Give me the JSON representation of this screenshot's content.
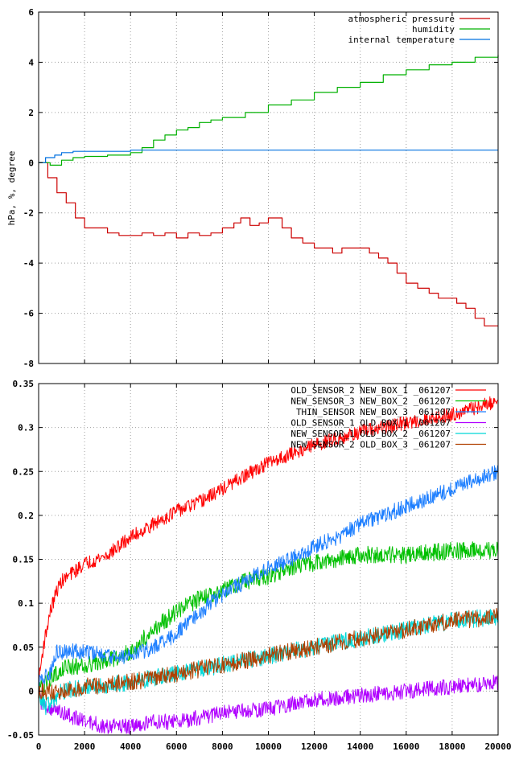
{
  "chart_data": [
    {
      "type": "line",
      "title": "",
      "xlabel": "",
      "ylabel": "hPa, %, degree",
      "xlim": [
        0,
        20000
      ],
      "ylim": [
        -8,
        6
      ],
      "grid": true,
      "legend_position": "top-right",
      "x_ticks": [
        0,
        2000,
        4000,
        6000,
        8000,
        10000,
        12000,
        14000,
        16000,
        18000,
        20000
      ],
      "y_ticks": [
        -8,
        -6,
        -4,
        -2,
        0,
        2,
        4,
        6
      ],
      "y_tick_labels": [
        "-8",
        "-6",
        "-4",
        "-2",
        "0",
        "2",
        "4",
        "6"
      ],
      "x_tick_labels_shown": false,
      "series": [
        {
          "name": "atmospheric pressure",
          "color": "#cc0000",
          "points": [
            [
              0,
              0
            ],
            [
              400,
              -0.6
            ],
            [
              800,
              -1.2
            ],
            [
              1200,
              -1.6
            ],
            [
              1600,
              -2.2
            ],
            [
              2000,
              -2.6
            ],
            [
              2500,
              -2.6
            ],
            [
              3000,
              -2.8
            ],
            [
              3500,
              -2.9
            ],
            [
              4000,
              -2.9
            ],
            [
              4500,
              -2.8
            ],
            [
              5000,
              -2.9
            ],
            [
              5500,
              -2.8
            ],
            [
              6000,
              -3.0
            ],
            [
              6500,
              -2.8
            ],
            [
              7000,
              -2.9
            ],
            [
              7500,
              -2.8
            ],
            [
              8000,
              -2.6
            ],
            [
              8500,
              -2.4
            ],
            [
              8800,
              -2.2
            ],
            [
              9200,
              -2.5
            ],
            [
              9600,
              -2.4
            ],
            [
              10000,
              -2.2
            ],
            [
              10300,
              -2.2
            ],
            [
              10600,
              -2.6
            ],
            [
              11000,
              -3.0
            ],
            [
              11500,
              -3.2
            ],
            [
              12000,
              -3.4
            ],
            [
              12500,
              -3.4
            ],
            [
              12800,
              -3.6
            ],
            [
              13200,
              -3.4
            ],
            [
              13600,
              -3.4
            ],
            [
              14000,
              -3.4
            ],
            [
              14400,
              -3.6
            ],
            [
              14800,
              -3.8
            ],
            [
              15200,
              -4.0
            ],
            [
              15600,
              -4.4
            ],
            [
              16000,
              -4.8
            ],
            [
              16500,
              -5.0
            ],
            [
              17000,
              -5.2
            ],
            [
              17400,
              -5.4
            ],
            [
              17800,
              -5.4
            ],
            [
              18200,
              -5.6
            ],
            [
              18600,
              -5.8
            ],
            [
              19000,
              -6.2
            ],
            [
              19400,
              -6.5
            ],
            [
              20000,
              -6.5
            ]
          ]
        },
        {
          "name": "humidity",
          "color": "#00b000",
          "points": [
            [
              0,
              0
            ],
            [
              500,
              -0.1
            ],
            [
              1000,
              0.1
            ],
            [
              1500,
              0.2
            ],
            [
              2000,
              0.25
            ],
            [
              3000,
              0.3
            ],
            [
              4000,
              0.4
            ],
            [
              4500,
              0.6
            ],
            [
              5000,
              0.9
            ],
            [
              5500,
              1.1
            ],
            [
              6000,
              1.3
            ],
            [
              6500,
              1.4
            ],
            [
              7000,
              1.6
            ],
            [
              7500,
              1.7
            ],
            [
              8000,
              1.8
            ],
            [
              9000,
              2.0
            ],
            [
              10000,
              2.3
            ],
            [
              11000,
              2.5
            ],
            [
              12000,
              2.8
            ],
            [
              13000,
              3.0
            ],
            [
              14000,
              3.2
            ],
            [
              15000,
              3.5
            ],
            [
              16000,
              3.7
            ],
            [
              17000,
              3.9
            ],
            [
              18000,
              4.0
            ],
            [
              19000,
              4.2
            ],
            [
              20000,
              4.3
            ]
          ]
        },
        {
          "name": "internal temperature",
          "color": "#0070e0",
          "points": [
            [
              0,
              0
            ],
            [
              300,
              0.2
            ],
            [
              700,
              0.3
            ],
            [
              1000,
              0.4
            ],
            [
              1500,
              0.45
            ],
            [
              3000,
              0.45
            ],
            [
              4000,
              0.5
            ],
            [
              8000,
              0.5
            ],
            [
              20000,
              0.5
            ]
          ]
        }
      ]
    },
    {
      "type": "line",
      "title": "",
      "xlabel": "",
      "ylabel": "",
      "xlim": [
        0,
        20000
      ],
      "ylim": [
        -0.05,
        0.35
      ],
      "grid": true,
      "legend_position": "top-right",
      "x_ticks": [
        0,
        2000,
        4000,
        6000,
        8000,
        10000,
        12000,
        14000,
        16000,
        18000,
        20000
      ],
      "x_tick_labels": [
        "0",
        "2000",
        "4000",
        "6000",
        "8000",
        "10000",
        "12000",
        "14000",
        "16000",
        "18000",
        "20000"
      ],
      "y_ticks": [
        -0.05,
        0,
        0.05,
        0.1,
        0.15,
        0.2,
        0.25,
        0.3,
        0.35
      ],
      "y_tick_labels": [
        "-0.05",
        "0",
        "0.05",
        "0.1",
        "0.15",
        "0.2",
        "0.25",
        "0.3",
        "0.35"
      ],
      "series": [
        {
          "name": "OLD_SENSOR_2 NEW_BOX_1 _061207",
          "color": "#ff0000",
          "noise": 0.008,
          "points": [
            [
              0,
              0.01
            ],
            [
              200,
              0.05
            ],
            [
              500,
              0.09
            ],
            [
              800,
              0.115
            ],
            [
              1000,
              0.125
            ],
            [
              1500,
              0.135
            ],
            [
              2000,
              0.145
            ],
            [
              3000,
              0.155
            ],
            [
              4000,
              0.175
            ],
            [
              5000,
              0.19
            ],
            [
              6000,
              0.205
            ],
            [
              7000,
              0.215
            ],
            [
              8000,
              0.23
            ],
            [
              9000,
              0.245
            ],
            [
              10000,
              0.26
            ],
            [
              12000,
              0.28
            ],
            [
              14000,
              0.295
            ],
            [
              16000,
              0.305
            ],
            [
              18000,
              0.315
            ],
            [
              20000,
              0.33
            ]
          ]
        },
        {
          "name": "NEW_SENSOR_3 NEW_BOX_2 _061207",
          "color": "#00c000",
          "noise": 0.01,
          "points": [
            [
              0,
              0
            ],
            [
              500,
              0.015
            ],
            [
              1000,
              0.025
            ],
            [
              2000,
              0.03
            ],
            [
              3000,
              0.035
            ],
            [
              4000,
              0.045
            ],
            [
              5000,
              0.07
            ],
            [
              6000,
              0.09
            ],
            [
              7000,
              0.105
            ],
            [
              8000,
              0.115
            ],
            [
              9000,
              0.125
            ],
            [
              10000,
              0.13
            ],
            [
              11000,
              0.14
            ],
            [
              12000,
              0.145
            ],
            [
              13000,
              0.15
            ],
            [
              14000,
              0.155
            ],
            [
              16000,
              0.155
            ],
            [
              18000,
              0.16
            ],
            [
              20000,
              0.16
            ]
          ]
        },
        {
          "name": "THIN_SENSOR NEW_BOX_3 _061207",
          "color": "#1e7fff",
          "noise": 0.009,
          "points": [
            [
              0,
              0.01
            ],
            [
              500,
              0.02
            ],
            [
              800,
              0.045
            ],
            [
              1500,
              0.045
            ],
            [
              2000,
              0.045
            ],
            [
              3000,
              0.04
            ],
            [
              4000,
              0.04
            ],
            [
              5000,
              0.05
            ],
            [
              6000,
              0.065
            ],
            [
              7000,
              0.09
            ],
            [
              8000,
              0.11
            ],
            [
              9000,
              0.125
            ],
            [
              10000,
              0.14
            ],
            [
              11000,
              0.15
            ],
            [
              12000,
              0.165
            ],
            [
              13000,
              0.175
            ],
            [
              14000,
              0.19
            ],
            [
              15000,
              0.2
            ],
            [
              16000,
              0.21
            ],
            [
              17000,
              0.22
            ],
            [
              18000,
              0.23
            ],
            [
              19000,
              0.24
            ],
            [
              20000,
              0.25
            ]
          ]
        },
        {
          "name": "OLD_SENSOR_1 OLD_BOX_1 _061207",
          "color": "#b000ff",
          "noise": 0.009,
          "points": [
            [
              0,
              -0.01
            ],
            [
              500,
              -0.02
            ],
            [
              1000,
              -0.025
            ],
            [
              2000,
              -0.035
            ],
            [
              3000,
              -0.04
            ],
            [
              4000,
              -0.04
            ],
            [
              5000,
              -0.035
            ],
            [
              6000,
              -0.035
            ],
            [
              8000,
              -0.025
            ],
            [
              10000,
              -0.02
            ],
            [
              12000,
              -0.01
            ],
            [
              14000,
              -0.005
            ],
            [
              16000,
              0
            ],
            [
              18000,
              0.005
            ],
            [
              20000,
              0.01
            ]
          ]
        },
        {
          "name": "NEW_SENSOR_1 OLD_BOX_2 _061207",
          "color": "#00d8d8",
          "noise": 0.01,
          "points": [
            [
              0,
              0
            ],
            [
              300,
              -0.02
            ],
            [
              600,
              -0.01
            ],
            [
              1000,
              0
            ],
            [
              2000,
              0.005
            ],
            [
              4000,
              0.01
            ],
            [
              6000,
              0.02
            ],
            [
              8000,
              0.03
            ],
            [
              10000,
              0.04
            ],
            [
              12000,
              0.05
            ],
            [
              14000,
              0.06
            ],
            [
              16000,
              0.07
            ],
            [
              18000,
              0.08
            ],
            [
              20000,
              0.085
            ]
          ]
        },
        {
          "name": "NEW_SENSOR_2 OLD_BOX_3 _061207",
          "color": "#b04000",
          "noise": 0.01,
          "points": [
            [
              0,
              0
            ],
            [
              500,
              0
            ],
            [
              1000,
              0
            ],
            [
              2000,
              0.005
            ],
            [
              4000,
              0.01
            ],
            [
              6000,
              0.02
            ],
            [
              8000,
              0.03
            ],
            [
              10000,
              0.04
            ],
            [
              12000,
              0.05
            ],
            [
              14000,
              0.06
            ],
            [
              16000,
              0.07
            ],
            [
              18000,
              0.08
            ],
            [
              20000,
              0.085
            ]
          ]
        }
      ]
    }
  ]
}
